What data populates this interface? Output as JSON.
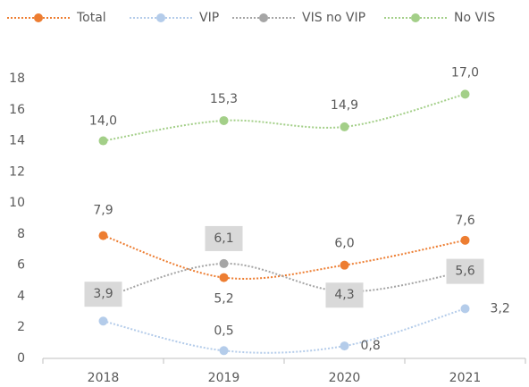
{
  "chart_data": {
    "type": "line",
    "categories": [
      "2018",
      "2019",
      "2020",
      "2021"
    ],
    "series": [
      {
        "name": "Total",
        "color": "#ED7D31",
        "values": [
          7.9,
          5.2,
          6.0,
          7.6
        ],
        "value_labels": [
          "7,9",
          "5,2",
          "6,0",
          "7,6"
        ]
      },
      {
        "name": "VIP",
        "color": "#B4CCEA",
        "values": [
          2.4,
          0.5,
          0.8,
          3.2
        ],
        "value_labels": [
          null,
          "0,5",
          "0,8",
          "3,2"
        ]
      },
      {
        "name": "VIS no VIP",
        "color": "#A5A5A5",
        "values": [
          3.9,
          6.1,
          4.3,
          5.6
        ],
        "value_labels": [
          "3,9",
          "6,1",
          "4,3",
          "5,6"
        ]
      },
      {
        "name": "No VIS",
        "color": "#A3CF88",
        "values": [
          14.0,
          15.3,
          14.9,
          17.0
        ],
        "value_labels": [
          "14,0",
          "15,3",
          "14,9",
          "17,0"
        ]
      }
    ],
    "ylim": [
      0,
      18
    ],
    "yticks": [
      0,
      2,
      4,
      6,
      8,
      10,
      12,
      14,
      16,
      18
    ],
    "legend": "top",
    "grid": false
  }
}
